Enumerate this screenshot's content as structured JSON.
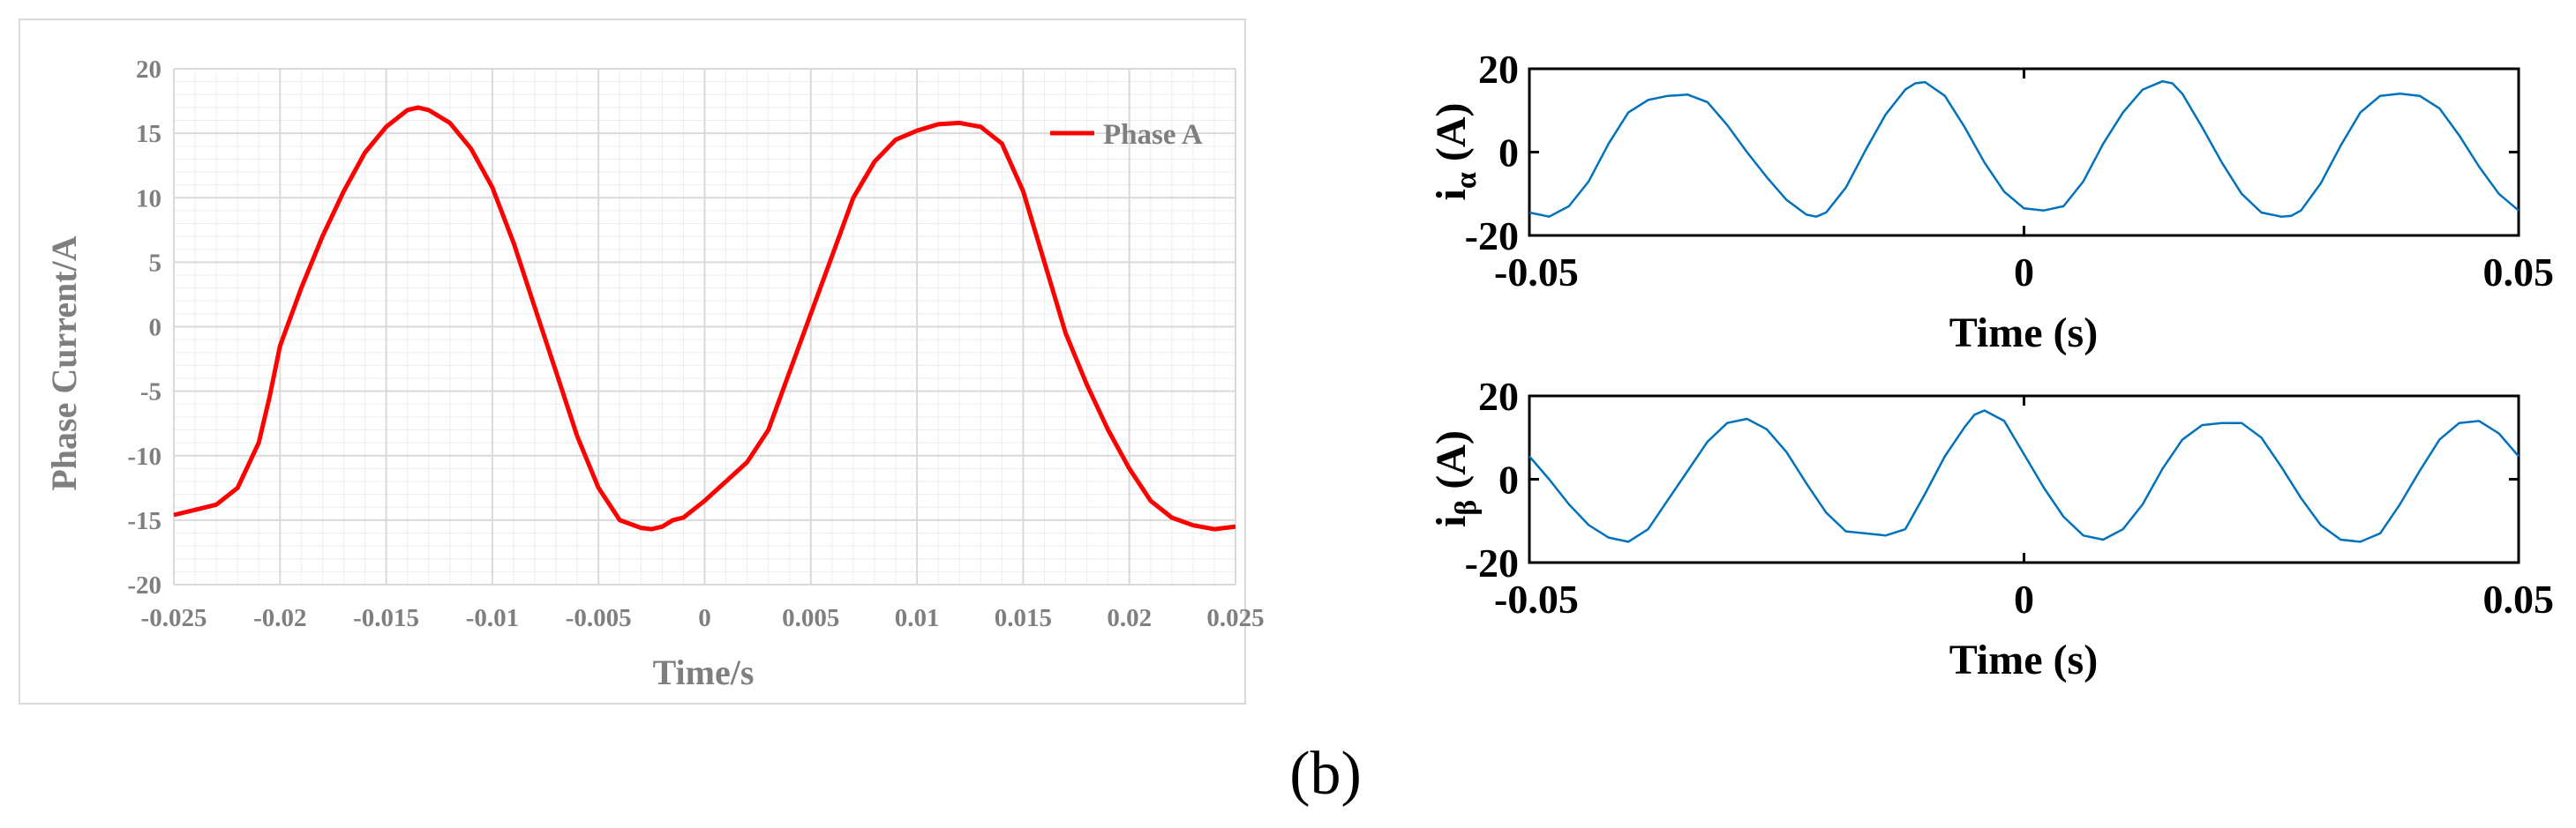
{
  "figure_label": "(b)",
  "colors": {
    "phase_line": "#ff0000",
    "alpha_beta_line": "#0072bd",
    "grid": "#d9d9d9",
    "minor_grid": "#ededed",
    "frame": "#d9d9d9",
    "text_gray": "#7f7f7f",
    "text_black": "#000000"
  },
  "chart_data": [
    {
      "type": "line",
      "title": "",
      "xlabel": "Time/s",
      "ylabel": "Phase Current/A",
      "xlim": [
        -0.025,
        0.025
      ],
      "ylim": [
        -20,
        20
      ],
      "xticks": [
        -0.025,
        -0.02,
        -0.015,
        -0.01,
        -0.005,
        0,
        0.005,
        0.01,
        0.015,
        0.02,
        0.025
      ],
      "xtick_labels": [
        "-0.025",
        "-0.02",
        "-0.015",
        "-0.01",
        "-0.005",
        "0",
        "0.005",
        "0.01",
        "0.015",
        "0.02",
        "0.025"
      ],
      "yticks": [
        -20,
        -15,
        -10,
        -5,
        0,
        5,
        10,
        15,
        20
      ],
      "ytick_labels": [
        "-20",
        "-15",
        "-10",
        "-5",
        "0",
        "5",
        "10",
        "15",
        "20"
      ],
      "grid": true,
      "legend_position": "top-right",
      "series": [
        {
          "name": "Phase A",
          "x": [
            -0.025,
            -0.024,
            -0.023,
            -0.022,
            -0.021,
            -0.0205,
            -0.02,
            -0.019,
            -0.018,
            -0.017,
            -0.016,
            -0.015,
            -0.014,
            -0.0135,
            -0.013,
            -0.012,
            -0.011,
            -0.01,
            -0.009,
            -0.008,
            -0.007,
            -0.006,
            -0.005,
            -0.004,
            -0.003,
            -0.0025,
            -0.002,
            -0.0015,
            -0.001,
            0,
            0.001,
            0.002,
            0.003,
            0.004,
            0.005,
            0.006,
            0.007,
            0.008,
            0.009,
            0.01,
            0.011,
            0.012,
            0.013,
            0.014,
            0.015,
            0.016,
            0.017,
            0.018,
            0.019,
            0.02,
            0.021,
            0.022,
            0.023,
            0.024,
            0.025
          ],
          "values": [
            -14.6,
            -14.2,
            -13.8,
            -12.5,
            -9.0,
            -5.5,
            -1.5,
            3.0,
            7.0,
            10.5,
            13.5,
            15.5,
            16.8,
            17.0,
            16.8,
            15.8,
            13.8,
            10.8,
            6.5,
            1.5,
            -3.5,
            -8.5,
            -12.5,
            -15.0,
            -15.6,
            -15.7,
            -15.5,
            -15.0,
            -14.8,
            -13.5,
            -12.0,
            -10.5,
            -8.0,
            -3.5,
            1.0,
            5.5,
            10.0,
            12.8,
            14.5,
            15.2,
            15.7,
            15.8,
            15.5,
            14.2,
            10.5,
            5.0,
            -0.5,
            -4.5,
            -8.0,
            -11.0,
            -13.5,
            -14.8,
            -15.4,
            -15.7,
            -15.5
          ]
        }
      ]
    },
    {
      "type": "line",
      "title": "",
      "xlabel": "Time (s)",
      "ylabel_main": "i",
      "ylabel_sub": "α",
      "ylabel_unit": " (A)",
      "xlim": [
        -0.05,
        0.05
      ],
      "ylim": [
        -20,
        20
      ],
      "xticks": [
        -0.05,
        0,
        0.05
      ],
      "xtick_labels": [
        "-0.05",
        "0",
        "0.05"
      ],
      "yticks": [
        -20,
        0,
        20
      ],
      "ytick_labels": [
        "-20",
        "0",
        "20"
      ],
      "grid": false,
      "series": [
        {
          "name": "i_alpha",
          "x": [
            -0.05,
            -0.048,
            -0.046,
            -0.044,
            -0.042,
            -0.04,
            -0.038,
            -0.036,
            -0.034,
            -0.032,
            -0.03,
            -0.028,
            -0.026,
            -0.024,
            -0.022,
            -0.021,
            -0.02,
            -0.018,
            -0.016,
            -0.014,
            -0.012,
            -0.011,
            -0.01,
            -0.008,
            -0.006,
            -0.004,
            -0.002,
            0,
            0.002,
            0.004,
            0.006,
            0.008,
            0.01,
            0.012,
            0.014,
            0.015,
            0.016,
            0.018,
            0.02,
            0.022,
            0.024,
            0.026,
            0.027,
            0.028,
            0.03,
            0.032,
            0.034,
            0.036,
            0.038,
            0.04,
            0.041,
            0.042,
            0.044,
            0.046,
            0.048,
            0.05
          ],
          "values": [
            -14.5,
            -15.5,
            -13.0,
            -7.0,
            2.0,
            9.5,
            12.5,
            13.5,
            13.8,
            12.0,
            6.5,
            0.0,
            -6.0,
            -11.5,
            -15.0,
            -15.5,
            -14.5,
            -8.5,
            0.5,
            9.0,
            15.0,
            16.5,
            16.8,
            13.5,
            6.0,
            -2.5,
            -9.5,
            -13.5,
            -14.0,
            -13.0,
            -7.0,
            2.0,
            9.5,
            15.0,
            17.0,
            16.5,
            14.0,
            6.0,
            -2.5,
            -10.0,
            -14.5,
            -15.5,
            -15.3,
            -14.0,
            -7.5,
            1.5,
            9.5,
            13.5,
            14.0,
            13.5,
            12.0,
            10.5,
            4.0,
            -3.5,
            -10.0,
            -14.0
          ]
        }
      ]
    },
    {
      "type": "line",
      "title": "",
      "xlabel": "Time (s)",
      "ylabel_main": "i",
      "ylabel_sub": "β",
      "ylabel_unit": " (A)",
      "xlim": [
        -0.05,
        0.05
      ],
      "ylim": [
        -20,
        20
      ],
      "xticks": [
        -0.05,
        0,
        0.05
      ],
      "xtick_labels": [
        "-0.05",
        "0",
        "0.05"
      ],
      "yticks": [
        -20,
        0,
        20
      ],
      "ytick_labels": [
        "-20",
        "0",
        "20"
      ],
      "grid": false,
      "series": [
        {
          "name": "i_beta",
          "x": [
            -0.05,
            -0.048,
            -0.046,
            -0.044,
            -0.042,
            -0.04,
            -0.038,
            -0.036,
            -0.034,
            -0.032,
            -0.03,
            -0.028,
            -0.026,
            -0.024,
            -0.022,
            -0.02,
            -0.018,
            -0.016,
            -0.014,
            -0.012,
            -0.01,
            -0.008,
            -0.006,
            -0.005,
            -0.004,
            -0.002,
            0,
            0.002,
            0.004,
            0.006,
            0.008,
            0.01,
            0.012,
            0.014,
            0.016,
            0.018,
            0.02,
            0.022,
            0.024,
            0.026,
            0.028,
            0.03,
            0.032,
            0.034,
            0.036,
            0.038,
            0.04,
            0.042,
            0.044,
            0.046,
            0.048,
            0.05
          ],
          "values": [
            5.5,
            0.0,
            -6.0,
            -11.0,
            -14.0,
            -15.0,
            -12.0,
            -5.0,
            2.0,
            9.0,
            13.5,
            14.5,
            12.0,
            6.5,
            -1.0,
            -8.0,
            -12.5,
            -13.0,
            -13.5,
            -12.0,
            -3.5,
            5.5,
            12.5,
            15.5,
            16.5,
            14.0,
            6.0,
            -2.0,
            -9.0,
            -13.5,
            -14.5,
            -12.0,
            -6.0,
            2.5,
            9.5,
            13.0,
            13.5,
            13.5,
            10.0,
            3.0,
            -4.5,
            -11.0,
            -14.5,
            -15.0,
            -13.0,
            -6.0,
            2.0,
            9.5,
            13.5,
            14.0,
            11.0,
            5.5
          ]
        }
      ]
    }
  ]
}
